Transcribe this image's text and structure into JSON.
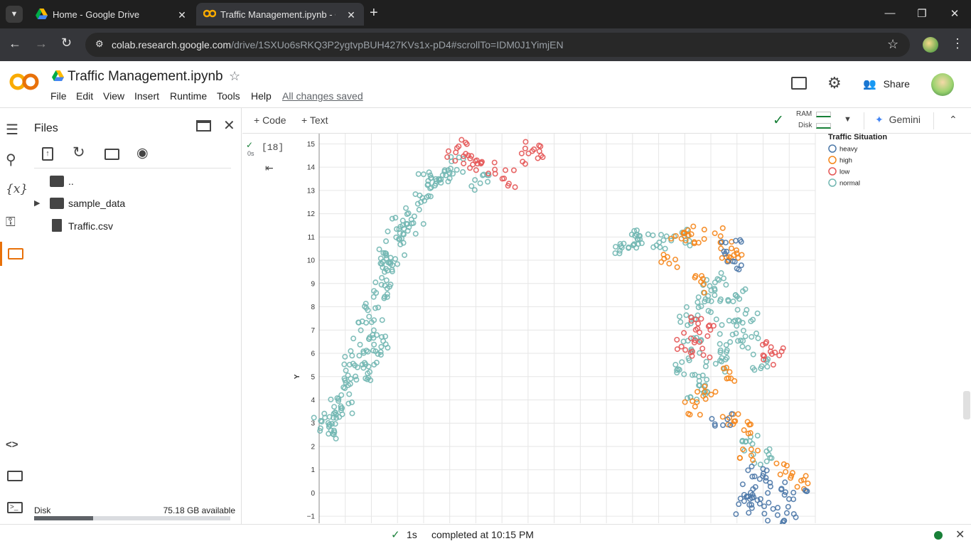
{
  "browser": {
    "tabs": [
      {
        "title": "Home - Google Drive"
      },
      {
        "title": "Traffic Management.ipynb - Co"
      }
    ],
    "url": {
      "host": "colab.research.google.com",
      "path": "/drive/1SXUo6sRKQ3P2ygtvpBUH427KVs1x-pD4#scrollTo=IDM0J1YimjEN"
    }
  },
  "colab": {
    "logo": "CO",
    "notebook_title": "Traffic Management.ipynb",
    "menu": [
      "File",
      "Edit",
      "View",
      "Insert",
      "Runtime",
      "Tools",
      "Help"
    ],
    "save_status": "All changes saved",
    "share_label": "Share"
  },
  "sidebar": {
    "title": "Files",
    "tree": [
      {
        "name": ".."
      },
      {
        "name": "sample_data"
      },
      {
        "name": "Traffic.csv"
      }
    ],
    "disk_label": "Disk",
    "disk_available": "75.18 GB available",
    "disk_used_fraction": 0.3
  },
  "toolbar": {
    "code_label": "+ Code",
    "text_label": "+ Text",
    "ram_label": "RAM",
    "disk_label": "Disk",
    "gemini_label": "Gemini"
  },
  "cell": {
    "exec_count": "[18]",
    "exec_time": "0s"
  },
  "statusbar": {
    "duration": "1s",
    "completed": "completed at 10:15 PM"
  },
  "chart_data": {
    "type": "scatter",
    "ylabel": "Y",
    "xlabel": "",
    "ylim": [
      -1.3,
      15.5
    ],
    "y_ticks": [
      -1,
      0,
      1,
      2,
      3,
      4,
      5,
      6,
      7,
      8,
      9,
      10,
      11,
      12,
      13,
      14,
      15
    ],
    "xlim": [
      0,
      19
    ],
    "legend_title": "Traffic Situation",
    "legend_position": "top-right",
    "series": [
      {
        "name": "heavy",
        "color": "#4c78a8"
      },
      {
        "name": "high",
        "color": "#f58518"
      },
      {
        "name": "low",
        "color": "#e45756"
      },
      {
        "name": "normal",
        "color": "#72b7b2"
      }
    ],
    "clusters": [
      {
        "series": "normal",
        "points": [
          [
            0.2,
            2.9
          ],
          [
            0.5,
            3.4
          ],
          [
            0.8,
            4.2
          ],
          [
            1.1,
            4.9
          ],
          [
            1.3,
            5.6
          ],
          [
            1.6,
            6.3
          ],
          [
            1.9,
            7.0
          ],
          [
            2.1,
            7.8
          ],
          [
            2.3,
            8.5
          ],
          [
            2.4,
            9.2
          ],
          [
            2.6,
            9.9
          ],
          [
            2.9,
            10.6
          ],
          [
            3.3,
            11.2
          ],
          [
            3.6,
            11.9
          ],
          [
            3.9,
            12.5
          ],
          [
            4.3,
            13.1
          ],
          [
            4.7,
            13.7
          ],
          [
            5.2,
            14.1
          ],
          [
            2.0,
            5.9
          ],
          [
            2.3,
            6.6
          ],
          [
            1.6,
            5.2
          ],
          [
            0.9,
            3.6
          ],
          [
            0.4,
            2.6
          ],
          [
            2.7,
            10.2
          ],
          [
            3.0,
            11.5
          ],
          [
            4.0,
            13.4
          ],
          [
            6.2,
            13.4
          ],
          [
            11.5,
            10.5
          ],
          [
            12.3,
            11.0
          ],
          [
            13.1,
            10.8
          ],
          [
            13.8,
            11.0
          ],
          [
            12.0,
            10.9
          ],
          [
            15.2,
            9.1
          ],
          [
            16.0,
            8.4
          ],
          [
            16.4,
            7.6
          ],
          [
            15.6,
            7.2
          ],
          [
            14.8,
            8.1
          ],
          [
            14.1,
            7.6
          ],
          [
            14.3,
            6.4
          ],
          [
            14.0,
            5.5
          ],
          [
            14.5,
            4.7
          ],
          [
            15.2,
            5.6
          ],
          [
            15.7,
            6.2
          ],
          [
            16.5,
            6.6
          ],
          [
            17.0,
            5.6
          ],
          [
            15.0,
            8.6
          ],
          [
            14.5,
            4.2
          ],
          [
            16.6,
            2.2
          ],
          [
            17.0,
            1.6
          ]
        ]
      },
      {
        "series": "low",
        "points": [
          [
            5.3,
            14.8
          ],
          [
            5.6,
            14.5
          ],
          [
            5.9,
            14.2
          ],
          [
            6.4,
            14.1
          ],
          [
            7.2,
            13.5
          ],
          [
            8.1,
            14.5
          ],
          [
            8.2,
            14.8
          ],
          [
            14.3,
            7.2
          ],
          [
            14.8,
            7.0
          ],
          [
            14.1,
            6.4
          ],
          [
            14.6,
            6.1
          ],
          [
            17.2,
            6.1
          ],
          [
            17.4,
            5.9
          ]
        ]
      },
      {
        "series": "high",
        "points": [
          [
            13.8,
            10.9
          ],
          [
            14.4,
            11.1
          ],
          [
            15.1,
            11.0
          ],
          [
            15.6,
            10.5
          ],
          [
            15.8,
            10.1
          ],
          [
            13.4,
            10.0
          ],
          [
            14.7,
            9.0
          ],
          [
            14.8,
            4.4
          ],
          [
            14.2,
            3.6
          ],
          [
            15.8,
            3.0
          ],
          [
            16.2,
            2.8
          ],
          [
            16.5,
            1.8
          ],
          [
            17.8,
            0.9
          ],
          [
            18.4,
            0.5
          ],
          [
            15.6,
            5.1
          ]
        ]
      },
      {
        "series": "heavy",
        "points": [
          [
            15.8,
            10.5
          ],
          [
            16.0,
            10.0
          ],
          [
            15.4,
            3.0
          ],
          [
            16.8,
            0.9
          ],
          [
            17.0,
            0.4
          ],
          [
            16.4,
            0.0
          ],
          [
            17.6,
            0.1
          ],
          [
            18.3,
            -0.2
          ],
          [
            16.2,
            -0.6
          ],
          [
            17.4,
            -0.8
          ],
          [
            18.0,
            -1.0
          ],
          [
            16.8,
            -0.2
          ]
        ]
      }
    ]
  }
}
